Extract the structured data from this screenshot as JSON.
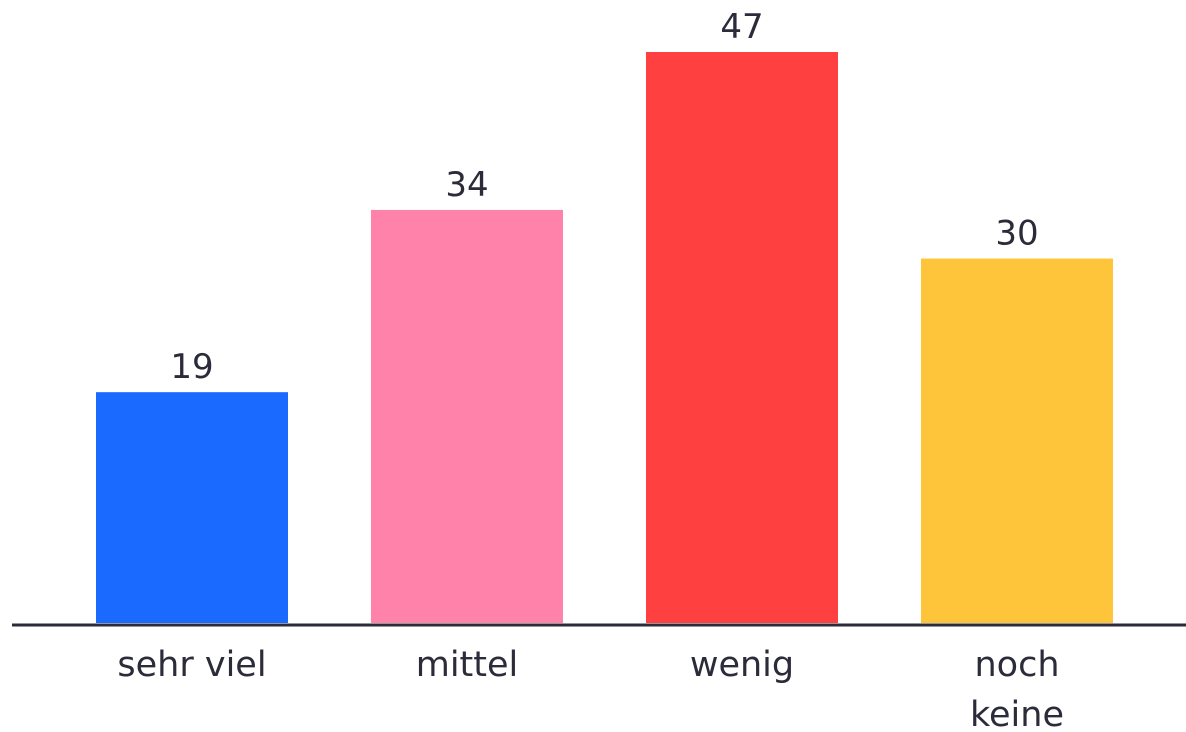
{
  "chart_data": {
    "type": "bar",
    "categories": [
      [
        "sehr viel"
      ],
      [
        "mittel"
      ],
      [
        "wenig"
      ],
      [
        "noch",
        "keine"
      ]
    ],
    "values": [
      19,
      34,
      47,
      30
    ],
    "colors": [
      "#1a6aff",
      "#ff82ab",
      "#ff4040",
      "#ffc53a"
    ],
    "axis_color": "#2b2b3a",
    "title": "",
    "xlabel": "",
    "ylabel": "",
    "ylim": [
      0,
      47
    ],
    "grid": false,
    "legend": "none"
  }
}
